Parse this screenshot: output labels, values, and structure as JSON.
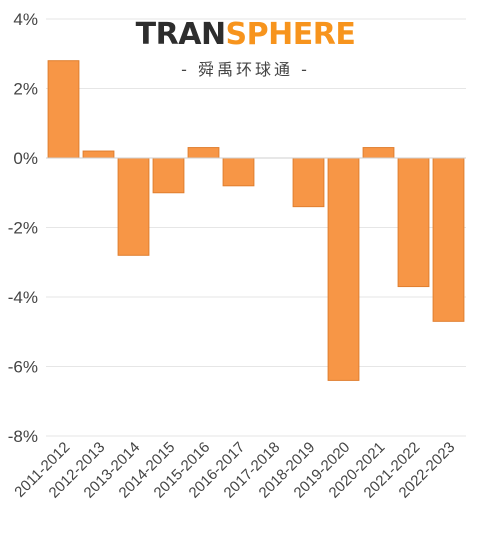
{
  "logo": {
    "part1": "TRAN",
    "part2": "SPHERE",
    "subtitle": "- 舜禹环球通 -",
    "color_dark": "#2d2d2d",
    "color_accent": "#f7941d"
  },
  "chart_data": {
    "type": "bar",
    "title": "",
    "xlabel": "",
    "ylabel": "",
    "categories": [
      "2011-2012",
      "2012-2013",
      "2013-2014",
      "2014-2015",
      "2015-2016",
      "2016-2017",
      "2017-2018",
      "2018-2019",
      "2019-2020",
      "2020-2021",
      "2021-2022",
      "2022-2023"
    ],
    "values": [
      2.8,
      0.2,
      -2.8,
      -1.0,
      0.3,
      -0.8,
      0.0,
      -1.4,
      -6.4,
      0.3,
      -3.7,
      -4.7
    ],
    "ylim": [
      -8,
      4
    ],
    "yticks": [
      4,
      2,
      0,
      -2,
      -4,
      -6,
      -8
    ],
    "ytick_labels": [
      "4%",
      "2%",
      "0%",
      "-2%",
      "-4%",
      "-6%",
      "-8%"
    ],
    "grid": true,
    "legend": "none",
    "bar_color": "#f79646",
    "bar_edge_color": "#e07e2e",
    "grid_color": "#e6e6e6",
    "axis_line_color": "#cfcfcf",
    "tick_color": "#444444"
  }
}
